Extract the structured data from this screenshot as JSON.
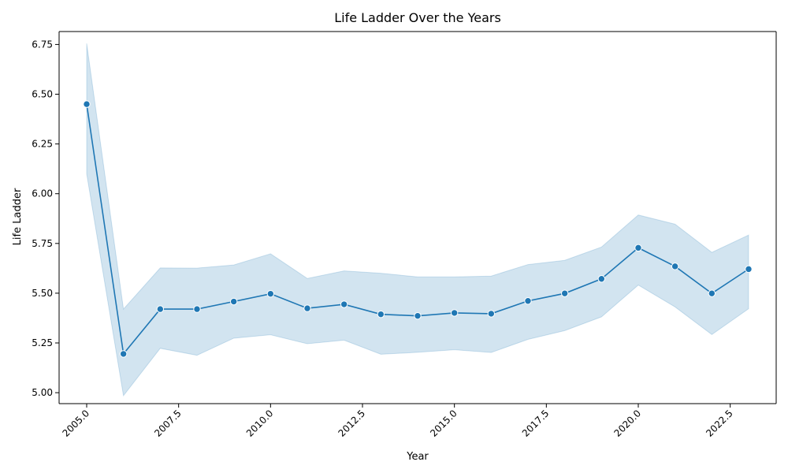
{
  "chart_data": {
    "type": "line",
    "title": "Life Ladder Over the Years",
    "xlabel": "Year",
    "ylabel": "Life Ladder",
    "xlim": [
      2004.25,
      2023.75
    ],
    "ylim": [
      4.945,
      6.815
    ],
    "x_ticks": [
      2005.0,
      2007.5,
      2010.0,
      2012.5,
      2015.0,
      2017.5,
      2020.0,
      2022.5
    ],
    "x_tick_labels": [
      "2005.0",
      "2007.5",
      "2010.0",
      "2012.5",
      "2015.0",
      "2017.5",
      "2020.0",
      "2022.5"
    ],
    "y_ticks": [
      5.0,
      5.25,
      5.5,
      5.75,
      6.0,
      6.25,
      6.5,
      6.75
    ],
    "y_tick_labels": [
      "5.00",
      "5.25",
      "5.50",
      "5.75",
      "6.00",
      "6.25",
      "6.50",
      "6.75"
    ],
    "grid": false,
    "series": [
      {
        "color": "#1f77b4",
        "x": [
          2005,
          2006,
          2007,
          2008,
          2009,
          2010,
          2011,
          2012,
          2013,
          2014,
          2015,
          2016,
          2017,
          2018,
          2019,
          2020,
          2021,
          2022,
          2023
        ],
        "y": [
          6.45,
          5.195,
          5.42,
          5.42,
          5.458,
          5.497,
          5.424,
          5.444,
          5.394,
          5.386,
          5.401,
          5.397,
          5.461,
          5.499,
          5.572,
          5.728,
          5.635,
          5.499,
          5.621
        ],
        "ci_lower": [
          6.1,
          4.985,
          5.223,
          5.188,
          5.274,
          5.291,
          5.246,
          5.264,
          5.193,
          5.203,
          5.216,
          5.202,
          5.268,
          5.312,
          5.381,
          5.541,
          5.431,
          5.292,
          5.422
        ],
        "ci_upper": [
          6.755,
          5.42,
          5.627,
          5.626,
          5.642,
          5.698,
          5.574,
          5.612,
          5.6,
          5.582,
          5.582,
          5.586,
          5.644,
          5.665,
          5.732,
          5.893,
          5.847,
          5.705,
          5.792
        ]
      }
    ]
  }
}
